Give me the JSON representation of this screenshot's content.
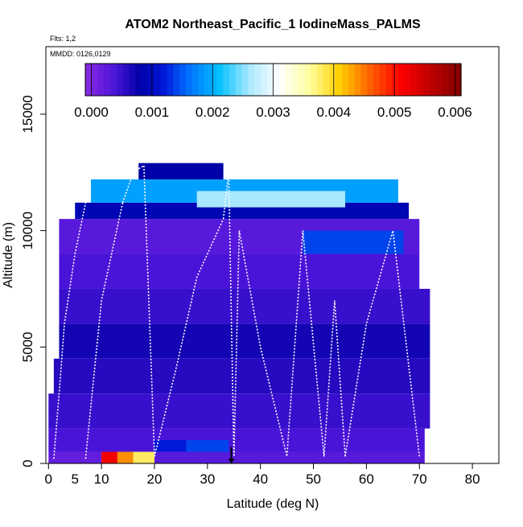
{
  "chart_data": {
    "type": "heatmap",
    "title": "ATOM2 Northeast_Pacific_1 IodineMass_PALMS",
    "flights_note": "Flts: 1,2",
    "dates_note": "MMDD: 0126,0129",
    "xlabel": "Latitude (deg N)",
    "ylabel": "Altitude (m)",
    "xlim": [
      -0.5,
      85
    ],
    "ylim": [
      0,
      17900
    ],
    "x_ticks": [
      0,
      5,
      10,
      20,
      30,
      40,
      50,
      60,
      70,
      80
    ],
    "x_minor_ticks": [
      0,
      10,
      20,
      30,
      40,
      50,
      60,
      70,
      80
    ],
    "y_ticks": [
      0,
      5000,
      10000,
      15000
    ],
    "colorbar": {
      "ticks": [
        "0.000",
        "0.001",
        "0.002",
        "0.003",
        "0.004",
        "0.005",
        "0.006"
      ],
      "tick_values": [
        0,
        0.001,
        0.002,
        0.003,
        0.004,
        0.005,
        0.006
      ],
      "range": [
        -0.0001,
        0.0061
      ],
      "stops": [
        {
          "v": -0.0001,
          "color": "#8a2be2"
        },
        {
          "v": 0.0004,
          "color": "#4a14d8"
        },
        {
          "v": 0.0008,
          "color": "#0000a8"
        },
        {
          "v": 0.0012,
          "color": "#0018d8"
        },
        {
          "v": 0.0016,
          "color": "#0070ff"
        },
        {
          "v": 0.0021,
          "color": "#00c0ff"
        },
        {
          "v": 0.0026,
          "color": "#a8e8ff"
        },
        {
          "v": 0.0031,
          "color": "#ffffff"
        },
        {
          "v": 0.0036,
          "color": "#ffffa0"
        },
        {
          "v": 0.0041,
          "color": "#ffd000"
        },
        {
          "v": 0.0046,
          "color": "#ff6000"
        },
        {
          "v": 0.0051,
          "color": "#ff0000"
        },
        {
          "v": 0.0061,
          "color": "#800000"
        }
      ]
    },
    "cells": [
      {
        "x": [
          0,
          10
        ],
        "y": [
          0,
          500
        ],
        "v": 0.0002
      },
      {
        "x": [
          10,
          13
        ],
        "y": [
          0,
          500
        ],
        "v": 0.0052
      },
      {
        "x": [
          13,
          16
        ],
        "y": [
          0,
          500
        ],
        "v": 0.0044
      },
      {
        "x": [
          16,
          20
        ],
        "y": [
          0,
          500
        ],
        "v": 0.0038
      },
      {
        "x": [
          20,
          71
        ],
        "y": [
          0,
          500
        ],
        "v": 0.0003
      },
      {
        "x": [
          0,
          71
        ],
        "y": [
          500,
          1500
        ],
        "v": 0.0004
      },
      {
        "x": [
          20,
          26
        ],
        "y": [
          500,
          1000
        ],
        "v": 0.0012
      },
      {
        "x": [
          26,
          34
        ],
        "y": [
          500,
          1000
        ],
        "v": 0.0014
      },
      {
        "x": [
          0,
          72
        ],
        "y": [
          1500,
          3000
        ],
        "v": 0.0005
      },
      {
        "x": [
          1,
          72
        ],
        "y": [
          3000,
          4500
        ],
        "v": 0.0006
      },
      {
        "x": [
          2,
          72
        ],
        "y": [
          4500,
          6000
        ],
        "v": 0.0007
      },
      {
        "x": [
          2,
          72
        ],
        "y": [
          6000,
          7500
        ],
        "v": 0.0005
      },
      {
        "x": [
          2,
          70
        ],
        "y": [
          7500,
          9000
        ],
        "v": 0.0004
      },
      {
        "x": [
          2,
          70
        ],
        "y": [
          9000,
          10500
        ],
        "v": 0.0003
      },
      {
        "x": [
          48,
          67
        ],
        "y": [
          9000,
          10000
        ],
        "v": 0.0014
      },
      {
        "x": [
          5,
          68
        ],
        "y": [
          10500,
          11200
        ],
        "v": 0.0009
      },
      {
        "x": [
          8,
          66
        ],
        "y": [
          11200,
          12200
        ],
        "v": 0.0019
      },
      {
        "x": [
          28,
          56
        ],
        "y": [
          11000,
          11700
        ],
        "v": 0.0026
      },
      {
        "x": [
          17,
          33
        ],
        "y": [
          12200,
          12900
        ],
        "v": 0.0008
      },
      {
        "x": 0.5,
        "y": 400,
        "v": 0.0003
      }
    ],
    "tracks": [
      {
        "x": [
          1,
          2,
          3,
          5,
          7
        ],
        "y": [
          200,
          3000,
          6000,
          9000,
          11200
        ]
      },
      {
        "x": [
          7,
          10,
          14
        ],
        "y": [
          200,
          7000,
          11200
        ]
      },
      {
        "x": [
          14,
          16,
          18,
          20
        ],
        "y": [
          11200,
          12500,
          12800,
          300
        ]
      },
      {
        "x": [
          20,
          24,
          28,
          33
        ],
        "y": [
          300,
          4000,
          8000,
          10500
        ]
      },
      {
        "x": [
          33,
          34,
          35,
          36
        ],
        "y": [
          10500,
          12500,
          300,
          10000
        ]
      },
      {
        "x": [
          36,
          40,
          45,
          48
        ],
        "y": [
          10000,
          5000,
          300,
          10000
        ]
      },
      {
        "x": [
          48,
          52,
          54,
          56
        ],
        "y": [
          10000,
          300,
          7000,
          300
        ]
      },
      {
        "x": [
          56,
          60,
          65,
          70
        ],
        "y": [
          300,
          6000,
          10000,
          300
        ]
      }
    ],
    "marker": {
      "x": 34.5,
      "y": 0
    }
  }
}
